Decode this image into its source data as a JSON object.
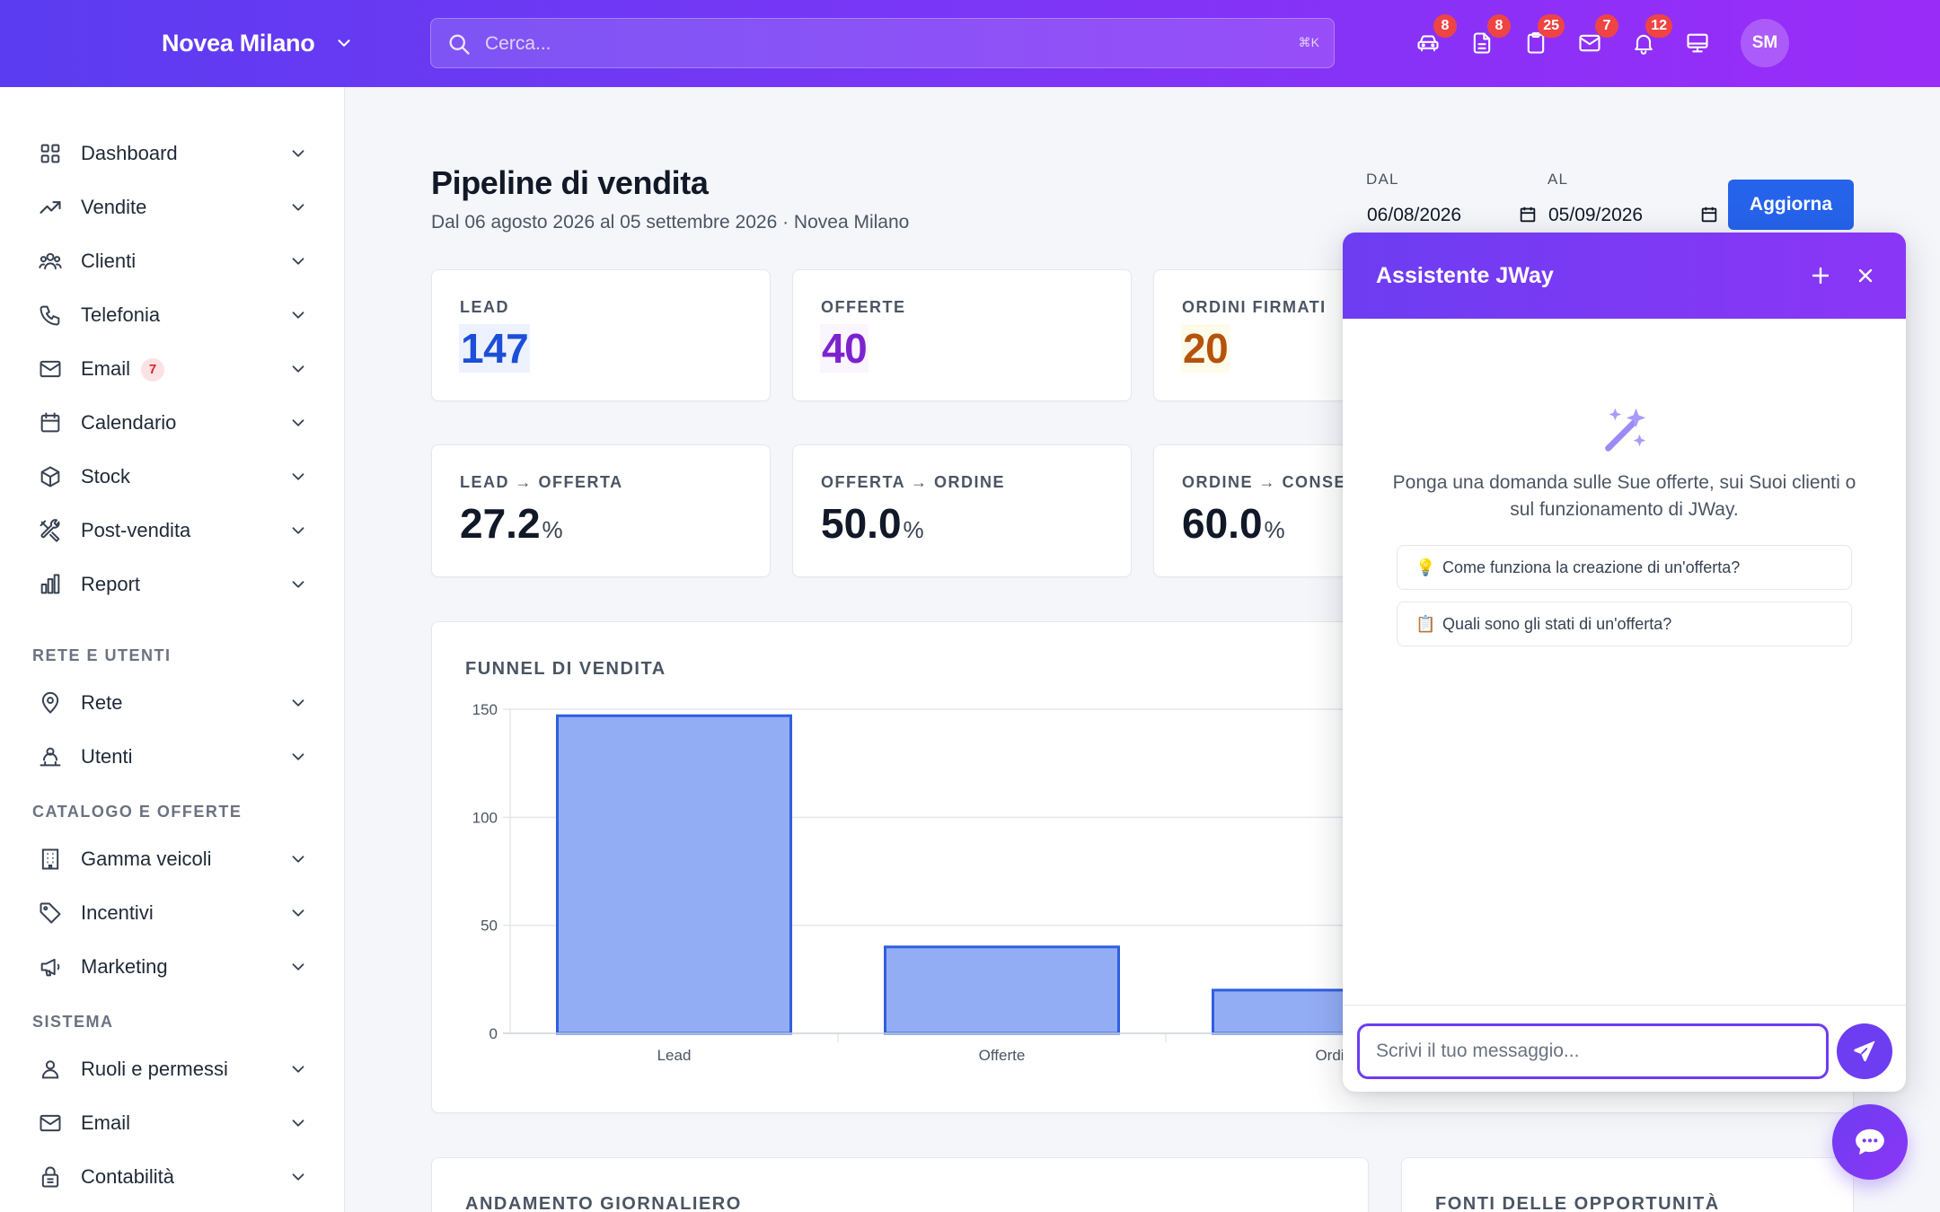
{
  "header": {
    "org_name": "Novea Milano",
    "search_placeholder": "Cerca...",
    "search_shortcut": "⌘K",
    "icons": [
      {
        "name": "car-icon",
        "badge": "8"
      },
      {
        "name": "document-icon",
        "badge": "8"
      },
      {
        "name": "clipboard-icon",
        "badge": "25"
      },
      {
        "name": "mail-icon",
        "badge": "7"
      },
      {
        "name": "bell-icon",
        "badge": "12"
      },
      {
        "name": "monitor-icon",
        "badge": ""
      }
    ],
    "user_initials": "SM"
  },
  "sidebar": {
    "items": [
      {
        "label": "Dashboard",
        "icon": "grid-icon"
      },
      {
        "label": "Vendite",
        "icon": "trending-up-icon"
      },
      {
        "label": "Clienti",
        "icon": "users-icon"
      },
      {
        "label": "Telefonia",
        "icon": "phone-icon"
      },
      {
        "label": "Email",
        "icon": "mail-icon",
        "badge": "7"
      },
      {
        "label": "Calendario",
        "icon": "calendar-icon"
      },
      {
        "label": "Stock",
        "icon": "box-icon"
      },
      {
        "label": "Post-vendita",
        "icon": "tools-icon"
      },
      {
        "label": "Report",
        "icon": "bar-chart-icon"
      }
    ],
    "section_network": "RETE E UTENTI",
    "network_items": [
      {
        "label": "Rete",
        "icon": "map-pin-icon"
      },
      {
        "label": "Utenti",
        "icon": "user-network-icon"
      }
    ],
    "section_catalog": "CATALOGO E OFFERTE",
    "catalog_items": [
      {
        "label": "Gamma veicoli",
        "icon": "building-icon"
      },
      {
        "label": "Incentivi",
        "icon": "tag-icon"
      },
      {
        "label": "Marketing",
        "icon": "megaphone-icon"
      }
    ],
    "section_system": "SISTEMA",
    "system_items": [
      {
        "label": "Ruoli e permessi",
        "icon": "user-icon"
      },
      {
        "label": "Email",
        "icon": "mail-icon"
      },
      {
        "label": "Contabilità",
        "icon": "lock-icon"
      }
    ]
  },
  "page": {
    "title": "Pipeline di vendita",
    "subtitle": "Dal 06 agosto 2026 al 05 settembre 2026 · Novea Milano",
    "date_from_label": "DAL",
    "date_from_value": "06/08/2026",
    "date_to_label": "AL",
    "date_to_value": "05/09/2026",
    "refresh_button": "Aggiorna"
  },
  "kpis": [
    {
      "label": "LEAD",
      "value": "147",
      "color": "#1d4ed8"
    },
    {
      "label": "OFFERTE",
      "value": "40",
      "color": "#7e22ce"
    },
    {
      "label": "ORDINI FIRMATI",
      "value": "20",
      "color": "#b45309"
    }
  ],
  "conversions": [
    {
      "label": "LEAD → OFFERTA",
      "value": "27.2",
      "unit": "%"
    },
    {
      "label": "OFFERTA → ORDINE",
      "value": "50.0",
      "unit": "%"
    },
    {
      "label": "ORDINE → CONSEG",
      "value": "60.0",
      "unit": "%"
    }
  ],
  "funnel": {
    "title": "FUNNEL DI VENDITA"
  },
  "chart_data": {
    "type": "bar",
    "title": "",
    "categories": [
      "Lead",
      "Offerte",
      "Ordini"
    ],
    "category_labels_visible": [
      "Lead",
      "Offerte",
      "Ordi"
    ],
    "values": [
      147,
      40,
      20
    ],
    "ylim": [
      0,
      150
    ],
    "yticks": [
      "0",
      "50",
      "100",
      "150"
    ],
    "grid": true,
    "bar_color": "#93adf5",
    "bar_border": "#2f5fe0"
  },
  "bottom_cards": {
    "daily_title": "ANDAMENTO GIORNALIERO",
    "sources_title": "FONTI DELLE OPPORTUNITÀ"
  },
  "assistant": {
    "title": "Assistente JWay",
    "intro": "Ponga una domanda sulle Sue offerte, sui Suoi clienti o sul funzionamento di JWay.",
    "suggestions": [
      {
        "emoji": "💡",
        "text": "Come funziona la creazione di un'offerta?"
      },
      {
        "emoji": "📋",
        "text": "Quali sono gli stati di un'offerta?"
      }
    ],
    "input_placeholder": "Scrivi il tuo messaggio..."
  },
  "colors": {
    "accent": "#6d3df2",
    "primary_button": "#2563eb",
    "badge": "#ef4444"
  }
}
